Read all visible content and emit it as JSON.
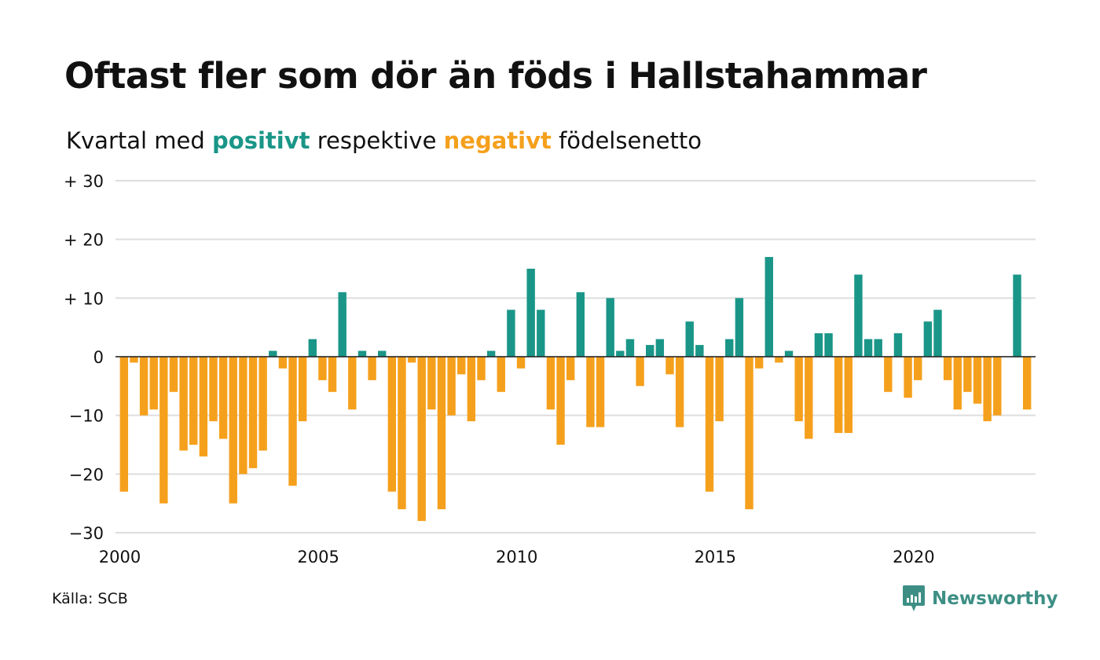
{
  "title": "Oftast fler som dör än föds i Hallstahammar",
  "subtitle": {
    "before": "Kvartal med ",
    "positive": "positivt",
    "middle": " respektive ",
    "negative": "negativt",
    "after": " födelsenetto"
  },
  "source": "Källa: SCB",
  "brand": "Newsworthy",
  "colors": {
    "positive": "#1a9688",
    "negative": "#f5a01c",
    "grid": "#dddddd",
    "brand": "#3d8f85"
  },
  "chart_data": {
    "type": "bar",
    "title": "Oftast fler som dör än föds i Hallstahammar",
    "subtitle": "Kvartal med positivt respektive negativt födelsenetto",
    "xlabel": "",
    "ylabel": "",
    "ylim": [
      -30,
      30
    ],
    "y_ticks": [
      {
        "value": 30,
        "label": "+ 30"
      },
      {
        "value": 20,
        "label": "+ 20"
      },
      {
        "value": 10,
        "label": "+ 10"
      },
      {
        "value": 0,
        "label": "0"
      },
      {
        "value": -10,
        "label": "−10"
      },
      {
        "value": -20,
        "label": "−20"
      },
      {
        "value": -30,
        "label": "−30"
      }
    ],
    "x_ticks": [
      "2000",
      "2005",
      "2010",
      "2015",
      "2020"
    ],
    "grid": true,
    "first_period": "2000 Q1",
    "values": [
      -23,
      -1,
      -10,
      -9,
      -25,
      -6,
      -16,
      -15,
      -17,
      -11,
      -14,
      -25,
      -20,
      -19,
      -16,
      1,
      -2,
      -22,
      -11,
      3,
      -4,
      -6,
      11,
      -9,
      1,
      -4,
      1,
      -23,
      -26,
      -1,
      -28,
      -9,
      -26,
      -10,
      -3,
      -11,
      -4,
      1,
      -6,
      8,
      -2,
      15,
      8,
      -9,
      -15,
      -4,
      11,
      -12,
      -12,
      10,
      1,
      3,
      -5,
      2,
      3,
      -3,
      -12,
      6,
      2,
      -23,
      -11,
      3,
      10,
      -26,
      -2,
      17,
      -1,
      1,
      -11,
      -14,
      4,
      4,
      -13,
      -13,
      14,
      3,
      3,
      -6,
      4,
      -7,
      -4,
      6,
      8,
      -4,
      -9,
      -6,
      -8,
      -11,
      -10,
      0,
      14,
      -9
    ]
  }
}
